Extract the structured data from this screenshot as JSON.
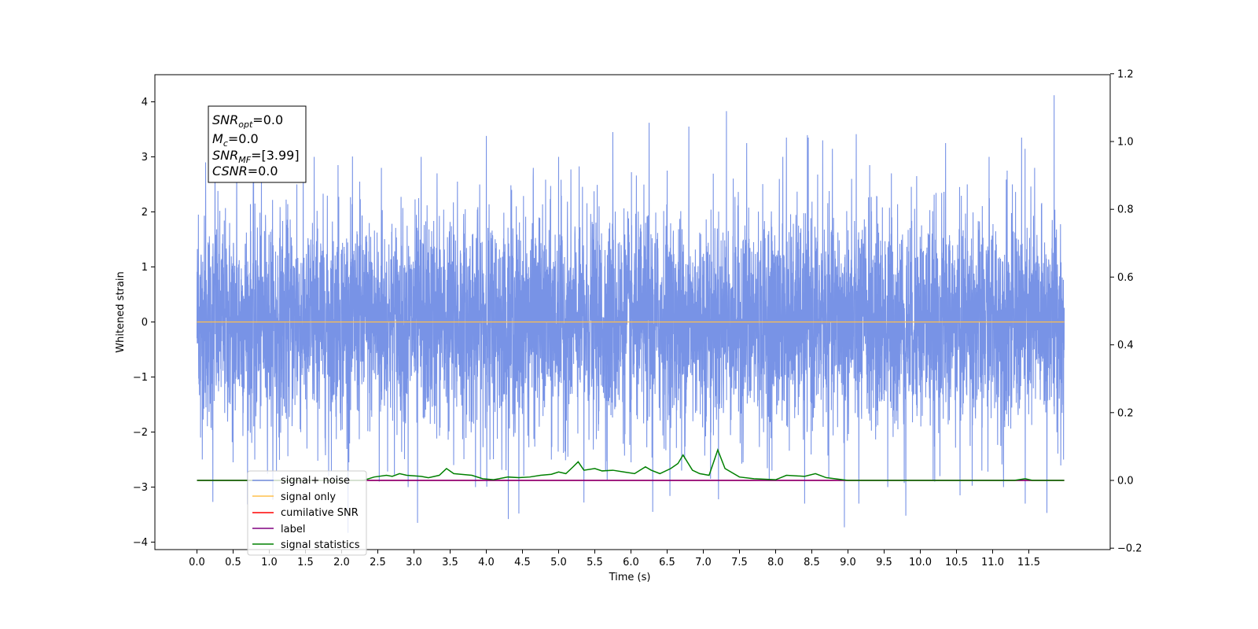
{
  "chart_data": {
    "type": "line",
    "xlabel": "Time (s)",
    "ylabel": "Whitened strain",
    "xlim": [
      -0.6,
      12.35
    ],
    "ylim": [
      -4.1,
      4.5
    ],
    "y2lim": [
      -0.2,
      1.2
    ],
    "grid": false,
    "legend_position": "lower-left",
    "x_ticks": [
      "0.0",
      "0.5",
      "1.0",
      "1.5",
      "2.0",
      "2.5",
      "3.0",
      "3.5",
      "4.0",
      "4.5",
      "5.0",
      "5.5",
      "6.0",
      "6.5",
      "7.0",
      "7.5",
      "8.0",
      "8.5",
      "9.0",
      "9.5",
      "10.0",
      "10.5",
      "11.0",
      "11.5"
    ],
    "y_ticks": [
      "4",
      "3",
      "2",
      "1",
      "0",
      "−1",
      "−2",
      "−3",
      "−4"
    ],
    "y2_ticks": [
      "1.2",
      "1.0",
      "0.8",
      "0.6",
      "0.4",
      "0.2",
      "0.0",
      "−0.2"
    ],
    "annotation": {
      "snr_opt_base": "SNR",
      "snr_opt_sub": "opt",
      "snr_opt_value": "=0.0",
      "mc_base": "M",
      "mc_sub": "c",
      "mc_value": "=0.0",
      "snr_mf_base": "SNR",
      "snr_mf_sub": "MF",
      "snr_mf_value": "=[3.99]",
      "csnr_base": "CSNR",
      "csnr_value": "=0.0"
    },
    "series": [
      {
        "name": "signal+ noise",
        "color": "#7893e6",
        "axis": "left",
        "description_stats": {
          "x_start": 0.0,
          "x_end": 11.99,
          "envelope_upper_typical": 2.0,
          "envelope_lower_typical": -2.0
        },
        "peaks": [
          {
            "x": 0.02,
            "y": 1.95
          },
          {
            "x": 0.12,
            "y": 2.9
          },
          {
            "x": 0.25,
            "y": 3.25
          },
          {
            "x": 0.55,
            "y": 3.1
          },
          {
            "x": 0.78,
            "y": 3.0
          },
          {
            "x": 1.1,
            "y": 3.5
          },
          {
            "x": 1.38,
            "y": 2.5
          },
          {
            "x": 1.62,
            "y": 3.0
          },
          {
            "x": 1.95,
            "y": 2.85
          },
          {
            "x": 2.25,
            "y": 2.55
          },
          {
            "x": 2.55,
            "y": 2.8
          },
          {
            "x": 2.92,
            "y": 3.38
          },
          {
            "x": 3.1,
            "y": 3.0
          },
          {
            "x": 3.32,
            "y": 2.7
          },
          {
            "x": 3.6,
            "y": 2.55
          },
          {
            "x": 4.0,
            "y": 3.38
          },
          {
            "x": 4.35,
            "y": 2.4
          },
          {
            "x": 4.65,
            "y": 2.8
          },
          {
            "x": 5.0,
            "y": 3.0
          },
          {
            "x": 5.35,
            "y": 3.72
          },
          {
            "x": 5.75,
            "y": 3.45
          },
          {
            "x": 6.25,
            "y": 3.62
          },
          {
            "x": 6.5,
            "y": 2.75
          },
          {
            "x": 6.8,
            "y": 3.55
          },
          {
            "x": 7.1,
            "y": 2.8
          },
          {
            "x": 7.32,
            "y": 3.83
          },
          {
            "x": 7.6,
            "y": 3.25
          },
          {
            "x": 8.1,
            "y": 3.0
          },
          {
            "x": 8.15,
            "y": 3.35
          },
          {
            "x": 8.45,
            "y": 3.35
          },
          {
            "x": 8.65,
            "y": 3.3
          },
          {
            "x": 9.05,
            "y": 2.6
          },
          {
            "x": 9.3,
            "y": 2.85
          },
          {
            "x": 9.6,
            "y": 2.7
          },
          {
            "x": 9.95,
            "y": 2.65
          },
          {
            "x": 10.35,
            "y": 3.25
          },
          {
            "x": 10.65,
            "y": 2.5
          },
          {
            "x": 10.95,
            "y": 3.0
          },
          {
            "x": 11.2,
            "y": 2.75
          },
          {
            "x": 11.4,
            "y": 3.35
          },
          {
            "x": 11.58,
            "y": 2.8
          },
          {
            "x": 11.85,
            "y": 4.12
          },
          {
            "x": 11.98,
            "y": 1.85
          }
        ],
        "troughs": [
          {
            "x": 0.05,
            "y": -2.1
          },
          {
            "x": 0.22,
            "y": -3.27
          },
          {
            "x": 0.5,
            "y": -2.55
          },
          {
            "x": 0.8,
            "y": -2.5
          },
          {
            "x": 1.1,
            "y": -2.7
          },
          {
            "x": 1.52,
            "y": -2.3
          },
          {
            "x": 1.82,
            "y": -2.8
          },
          {
            "x": 2.1,
            "y": -2.55
          },
          {
            "x": 2.52,
            "y": -2.9
          },
          {
            "x": 2.92,
            "y": -3.0
          },
          {
            "x": 3.05,
            "y": -3.65
          },
          {
            "x": 3.55,
            "y": -2.6
          },
          {
            "x": 3.85,
            "y": -3.0
          },
          {
            "x": 4.05,
            "y": -2.5
          },
          {
            "x": 4.45,
            "y": -3.48
          },
          {
            "x": 4.9,
            "y": -2.5
          },
          {
            "x": 5.35,
            "y": -3.28
          },
          {
            "x": 5.65,
            "y": -2.7
          },
          {
            "x": 6.0,
            "y": -2.55
          },
          {
            "x": 6.3,
            "y": -3.45
          },
          {
            "x": 6.7,
            "y": -2.7
          },
          {
            "x": 7.1,
            "y": -2.85
          },
          {
            "x": 7.55,
            "y": -2.55
          },
          {
            "x": 7.95,
            "y": -2.7
          },
          {
            "x": 8.4,
            "y": -3.3
          },
          {
            "x": 8.95,
            "y": -3.73
          },
          {
            "x": 9.15,
            "y": -3.3
          },
          {
            "x": 9.55,
            "y": -3.0
          },
          {
            "x": 9.8,
            "y": -3.52
          },
          {
            "x": 10.2,
            "y": -2.9
          },
          {
            "x": 10.55,
            "y": -3.15
          },
          {
            "x": 10.85,
            "y": -2.7
          },
          {
            "x": 11.15,
            "y": -3.0
          },
          {
            "x": 11.45,
            "y": -3.3
          },
          {
            "x": 11.75,
            "y": -3.47
          },
          {
            "x": 11.98,
            "y": -2.5
          }
        ]
      },
      {
        "name": "signal only",
        "color": "#ffc04d",
        "axis": "left",
        "x": [
          0.0,
          11.99
        ],
        "y": [
          0.0,
          0.0
        ]
      },
      {
        "name": "cumilative SNR",
        "color": "#ff0000",
        "axis": "right",
        "x": [
          0.0,
          11.99
        ],
        "y": [
          0.0,
          0.0
        ]
      },
      {
        "name": "label",
        "color": "#800080",
        "axis": "right",
        "x": [
          0.0,
          11.99
        ],
        "y": [
          0.0,
          0.0
        ]
      },
      {
        "name": "signal statistics",
        "color": "#008000",
        "axis": "right",
        "x": [
          0.0,
          2.3,
          2.45,
          2.62,
          2.7,
          2.8,
          2.9,
          3.1,
          3.2,
          3.35,
          3.45,
          3.55,
          3.65,
          3.8,
          3.95,
          4.1,
          4.3,
          4.45,
          4.6,
          4.75,
          4.9,
          5.0,
          5.1,
          5.2,
          5.27,
          5.35,
          5.5,
          5.6,
          5.75,
          5.9,
          6.05,
          6.2,
          6.28,
          6.4,
          6.55,
          6.65,
          6.72,
          6.85,
          6.95,
          7.08,
          7.2,
          7.3,
          7.5,
          7.7,
          8.0,
          8.15,
          8.4,
          8.55,
          8.7,
          9.0,
          11.3,
          11.45,
          11.55,
          11.99
        ],
        "y": [
          0.0,
          0.0,
          0.01,
          0.015,
          0.012,
          0.02,
          0.015,
          0.012,
          0.008,
          0.015,
          0.035,
          0.02,
          0.018,
          0.015,
          0.005,
          0.002,
          0.01,
          0.008,
          0.01,
          0.015,
          0.018,
          0.025,
          0.02,
          0.04,
          0.055,
          0.03,
          0.035,
          0.028,
          0.03,
          0.025,
          0.02,
          0.04,
          0.03,
          0.02,
          0.035,
          0.05,
          0.075,
          0.03,
          0.02,
          0.015,
          0.09,
          0.035,
          0.01,
          0.005,
          0.002,
          0.015,
          0.012,
          0.02,
          0.008,
          0.0,
          0.0,
          0.005,
          0.0,
          0.0
        ]
      }
    ]
  }
}
